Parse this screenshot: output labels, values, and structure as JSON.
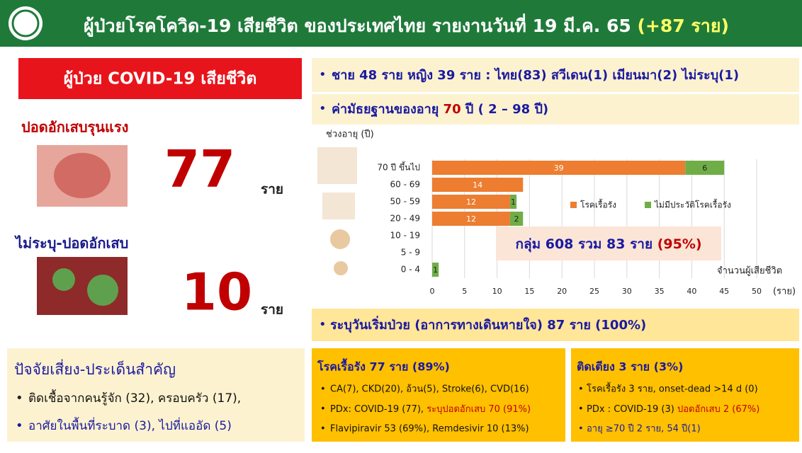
{
  "header": {
    "title": "ผู้ป่วยโรคโควิด-19 เสียชีวิต ของประเทศไทย รายงานวันที่ 19 มี.ค. 65",
    "highlight": "(+87 ราย)"
  },
  "left": {
    "banner": "ผู้ป่วย COVID-19  เสียชีวิต",
    "pneumonia_label": "ปอดอักเสบรุนแรง",
    "pneumonia_count": "77",
    "unit": "ราย",
    "unknown_label": "ไม่ระบุ-ปอดอักเสบ",
    "unknown_count": "10"
  },
  "summary": {
    "sex_nationality": "ชาย 48 ราย หญิง 39 ราย : ไทย(83) สวีเดน(1) เมียนมา(2) ไม่ระบุ(1)",
    "median_prefix": "ค่ามัธยฐานของอายุ",
    "median_value": "70",
    "median_suffix": "ปี ( 2 – 98 ปี)",
    "onset": "ระบุวันเริ่มป่วย (อาการทางเดินหายใจ) 87 ราย (100%)"
  },
  "chart_data": {
    "type": "bar",
    "orientation": "horizontal",
    "stacked": true,
    "y_label": "ช่วงอายุ (ปี)",
    "x_label": "จำนวนผู้เสียชีวิต",
    "x_unit": "(ราย)",
    "categories": [
      "70 ปี ขึ้นไป",
      "60 - 69",
      "50 - 59",
      "20 - 49",
      "10 - 19",
      "5 - 9",
      "0 - 4"
    ],
    "series": [
      {
        "name": "โรคเรื้อรัง",
        "color": "#ED7D31",
        "values": [
          39,
          14,
          12,
          12,
          null,
          null,
          null
        ]
      },
      {
        "name": "ไม่มีประวัติโรคเรื้อรัง",
        "color": "#70AD47",
        "values": [
          6,
          null,
          1,
          2,
          null,
          null,
          1
        ]
      }
    ],
    "xlim": [
      0,
      50
    ],
    "xticks": [
      0,
      5,
      10,
      15,
      20,
      25,
      30,
      35,
      40,
      45,
      50
    ],
    "grid": true,
    "annotation": "กลุ่ม 608 รวม 83 ราย",
    "annotation_highlight": "(95%)"
  },
  "risk": {
    "title": "ปัจจัยเสี่ยง-ประเด็นสำคัญ",
    "items": [
      "ติดเชื้อจากคนรู้จัก (32), ครอบครัว (17),",
      "อาศัยในพื้นที่ระบาด (3), ไปที่แออัด (5)"
    ]
  },
  "chronic": {
    "title": "โรคเรื้อรัง 77 ราย (89%)",
    "item1": "CA(7), CKD(20), อ้วน(5), Stroke(6), CVD(16)",
    "item2": "PDx: COVID-19 (77),",
    "item2_highlight": "ระบุปอดอักเสบ 70 (91%)",
    "item3": "Flavipiravir 53 (69%), Remdesivir 10 (13%)"
  },
  "bedridden": {
    "title": "ติดเตียง 3 ราย (3%)",
    "item1": "โรคเรื้อรัง 3 ราย, onset-dead >14 d (0)",
    "item2": "PDx : COVID-19 (3)",
    "item2_highlight": "ปอดอักเสบ 2 (67%)",
    "item3": "อายุ ≥70 ปี 2 ราย, 54 ปี(1)"
  }
}
